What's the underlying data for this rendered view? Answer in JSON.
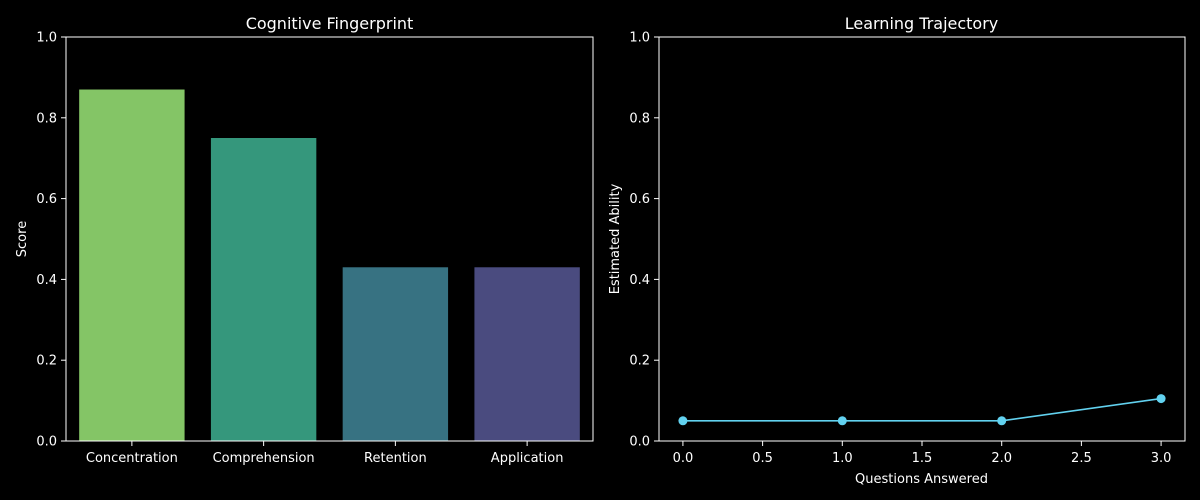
{
  "chart_data": [
    {
      "type": "bar",
      "title": "Cognitive Fingerprint",
      "xlabel": "",
      "ylabel": "Score",
      "categories": [
        "Concentration",
        "Comprehension",
        "Retention",
        "Application"
      ],
      "values": [
        0.87,
        0.75,
        0.43,
        0.43
      ],
      "colors": [
        "#84c566",
        "#35977c",
        "#377282",
        "#4a4b7f"
      ],
      "ylim": [
        0,
        1
      ],
      "yticks": [
        0.0,
        0.2,
        0.4,
        0.6,
        0.8,
        1.0
      ],
      "ytick_labels": [
        "0.0",
        "0.2",
        "0.4",
        "0.6",
        "0.8",
        "1.0"
      ],
      "grid": false,
      "legend": "none"
    },
    {
      "type": "line",
      "title": "Learning Trajectory",
      "xlabel": "Questions Answered",
      "ylabel": "Estimated Ability",
      "x": [
        0,
        1,
        2,
        3
      ],
      "y": [
        0.05,
        0.05,
        0.05,
        0.105
      ],
      "color": "#62d2f0",
      "xlim": [
        -0.15,
        3.15
      ],
      "ylim": [
        0,
        1
      ],
      "xticks": [
        0.0,
        0.5,
        1.0,
        1.5,
        2.0,
        2.5,
        3.0
      ],
      "xtick_labels": [
        "0.0",
        "0.5",
        "1.0",
        "1.5",
        "2.0",
        "2.5",
        "3.0"
      ],
      "yticks": [
        0.0,
        0.2,
        0.4,
        0.6,
        0.8,
        1.0
      ],
      "ytick_labels": [
        "0.0",
        "0.2",
        "0.4",
        "0.6",
        "0.8",
        "1.0"
      ],
      "grid": false,
      "legend": "none"
    }
  ]
}
